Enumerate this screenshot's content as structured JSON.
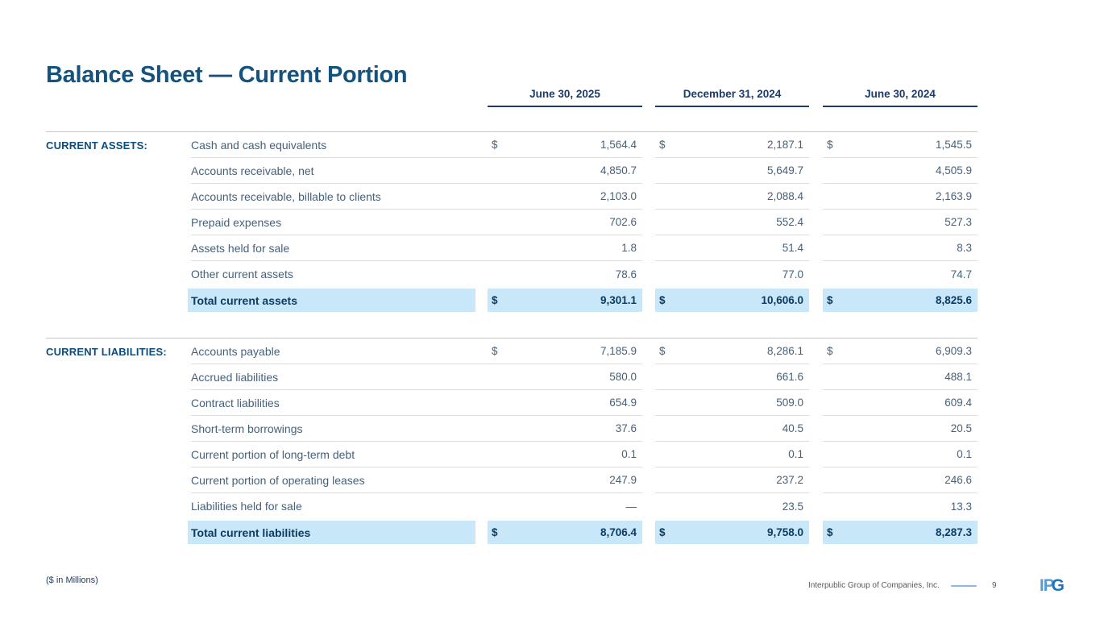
{
  "slide": {
    "title": "Balance Sheet — Current Portion",
    "footnote": "($ in Millions)",
    "footer": {
      "company": "Interpublic Group of Companies, Inc.",
      "page_number": "9",
      "logo_part1": "IP",
      "logo_part2": "G"
    }
  },
  "table": {
    "columns": [
      "June 30, 2025",
      "December 31, 2024",
      "June 30, 2024"
    ],
    "sections": [
      {
        "label": "CURRENT ASSETS:",
        "rows": [
          {
            "label": "Cash and cash equivalents",
            "dollar": "$",
            "values": [
              "1,564.4",
              "2,187.1",
              "1,545.5"
            ]
          },
          {
            "label": "Accounts receivable, net",
            "values": [
              "4,850.7",
              "5,649.7",
              "4,505.9"
            ]
          },
          {
            "label": "Accounts receivable, billable to clients",
            "values": [
              "2,103.0",
              "2,088.4",
              "2,163.9"
            ]
          },
          {
            "label": "Prepaid expenses",
            "values": [
              "702.6",
              "552.4",
              "527.3"
            ]
          },
          {
            "label": "Assets held for sale",
            "values": [
              "1.8",
              "51.4",
              "8.3"
            ]
          },
          {
            "label": "Other current assets",
            "values": [
              "78.6",
              "77.0",
              "74.7"
            ]
          }
        ],
        "total": {
          "label": "Total current assets",
          "dollar": "$",
          "values": [
            "9,301.1",
            "10,606.0",
            "8,825.6"
          ]
        }
      },
      {
        "label": "CURRENT LIABILITIES:",
        "rows": [
          {
            "label": "Accounts payable",
            "dollar": "$",
            "values": [
              "7,185.9",
              "8,286.1",
              "6,909.3"
            ]
          },
          {
            "label": "Accrued liabilities",
            "values": [
              "580.0",
              "661.6",
              "488.1"
            ]
          },
          {
            "label": "Contract liabilities",
            "values": [
              "654.9",
              "509.0",
              "609.4"
            ]
          },
          {
            "label": "Short-term borrowings",
            "values": [
              "37.6",
              "40.5",
              "20.5"
            ]
          },
          {
            "label": "Current portion of long-term debt",
            "values": [
              "0.1",
              "0.1",
              "0.1"
            ]
          },
          {
            "label": "Current portion of operating leases",
            "values": [
              "247.9",
              "237.2",
              "246.6"
            ]
          },
          {
            "label": "Liabilities held for sale",
            "values": [
              "—",
              "23.5",
              "13.3"
            ]
          }
        ],
        "total": {
          "label": "Total current liabilities",
          "dollar": "$",
          "values": [
            "8,706.4",
            "9,758.0",
            "8,287.3"
          ]
        }
      }
    ]
  },
  "colors": {
    "title_blue": "#14537F",
    "header_navy": "#1E3A68",
    "body_text": "#46617B",
    "total_text": "#0C3C63",
    "highlight_blue": "#C8E7F8",
    "divider_gray": "#DCDCDC",
    "section_border_gray": "#C6C6C6",
    "footer_gray": "#595959",
    "footer_line_blue": "#8FB8DC",
    "logo_light_blue": "#5B9BD5",
    "logo_dark_blue": "#1C74BB"
  }
}
